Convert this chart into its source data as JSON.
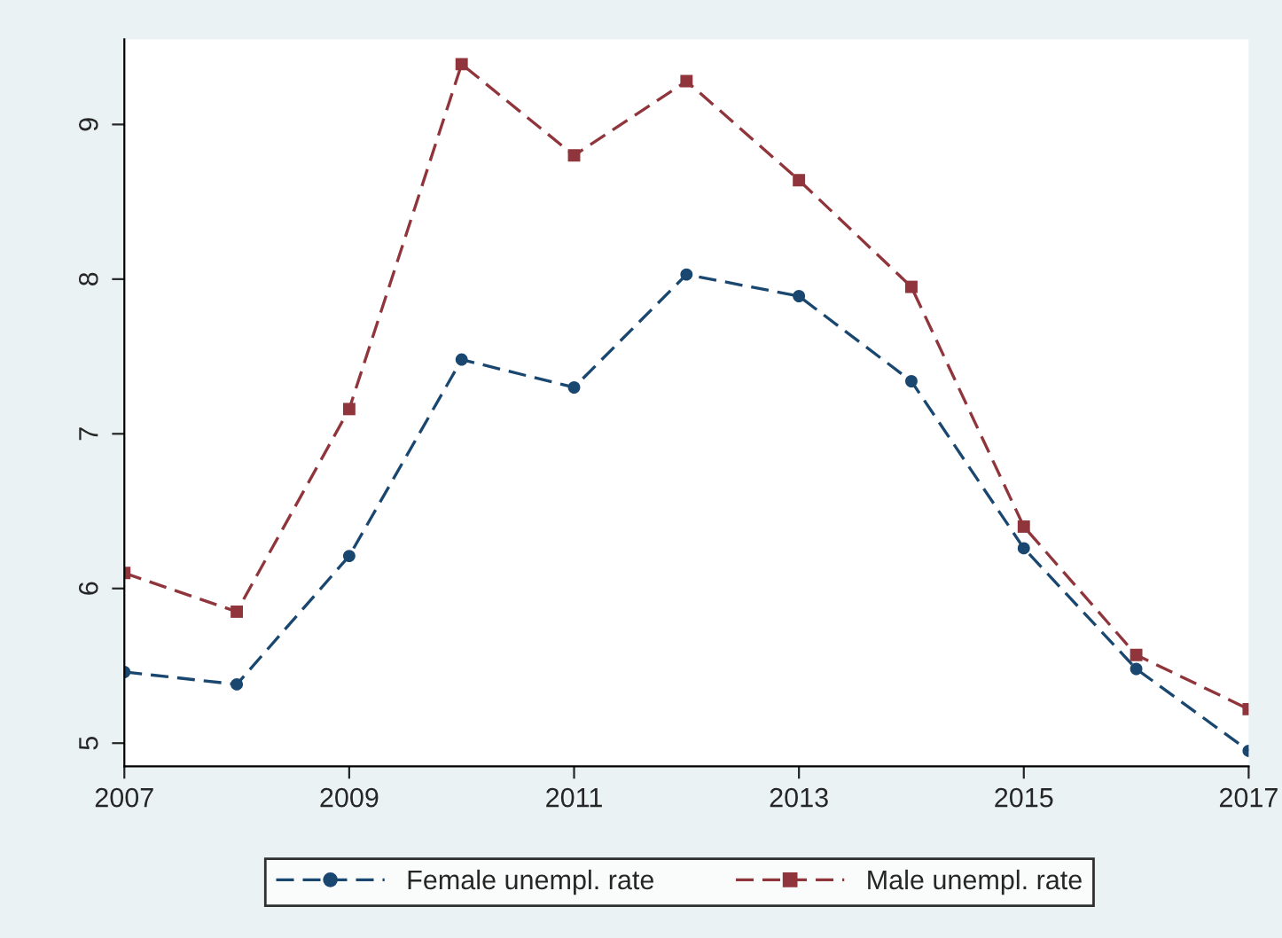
{
  "chart_data": {
    "type": "line",
    "x": [
      2007,
      2008,
      2009,
      2010,
      2011,
      2012,
      2013,
      2014,
      2015,
      2016,
      2017
    ],
    "series": [
      {
        "name": "Female unempl. rate",
        "color": "#1a476f",
        "marker": "circle",
        "line_style": "dashed",
        "values": [
          5.46,
          5.38,
          6.21,
          7.48,
          7.3,
          8.03,
          7.89,
          7.34,
          6.26,
          5.48,
          4.95
        ]
      },
      {
        "name": "Male unempl. rate",
        "color": "#90353b",
        "marker": "square",
        "line_style": "dashed",
        "values": [
          6.1,
          5.85,
          7.16,
          9.39,
          8.8,
          9.28,
          8.64,
          7.95,
          6.4,
          5.57,
          5.22
        ]
      }
    ],
    "xlim": [
      2007,
      2017
    ],
    "xticks": [
      2007,
      2009,
      2011,
      2013,
      2015,
      2017
    ],
    "ylim": [
      4.85,
      9.55
    ],
    "yticks": [
      5,
      6,
      7,
      8,
      9
    ],
    "grid": false,
    "legend": "bottom"
  }
}
